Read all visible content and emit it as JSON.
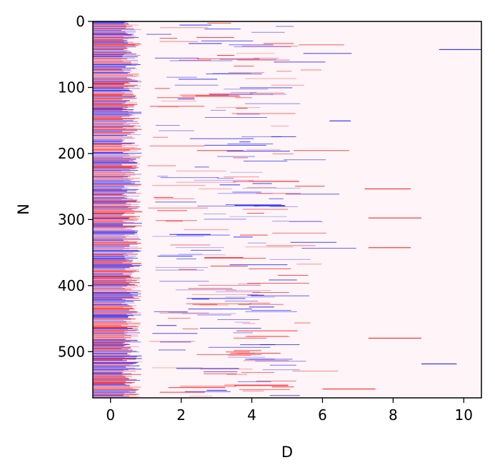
{
  "chart_data": {
    "type": "heatmap",
    "title": "",
    "xlabel": "D",
    "ylabel": "N",
    "xlim": [
      -0.5,
      10.5
    ],
    "ylim": [
      570,
      0
    ],
    "x_ticks": [
      0,
      2,
      4,
      6,
      8,
      10
    ],
    "y_ticks": [
      0,
      100,
      200,
      300,
      400,
      500
    ],
    "x_tick_labels": [
      "0",
      "2",
      "4",
      "6",
      "8",
      "10"
    ],
    "y_tick_labels": [
      "0",
      "100",
      "200",
      "300",
      "400",
      "500"
    ],
    "n_rows": 570,
    "colormap": "seismic",
    "colors": {
      "positive": "#ff0000",
      "negative": "#0000ff",
      "zero": "#fff5f8",
      "frame": "#000000"
    },
    "grid": false,
    "legend": "none"
  }
}
